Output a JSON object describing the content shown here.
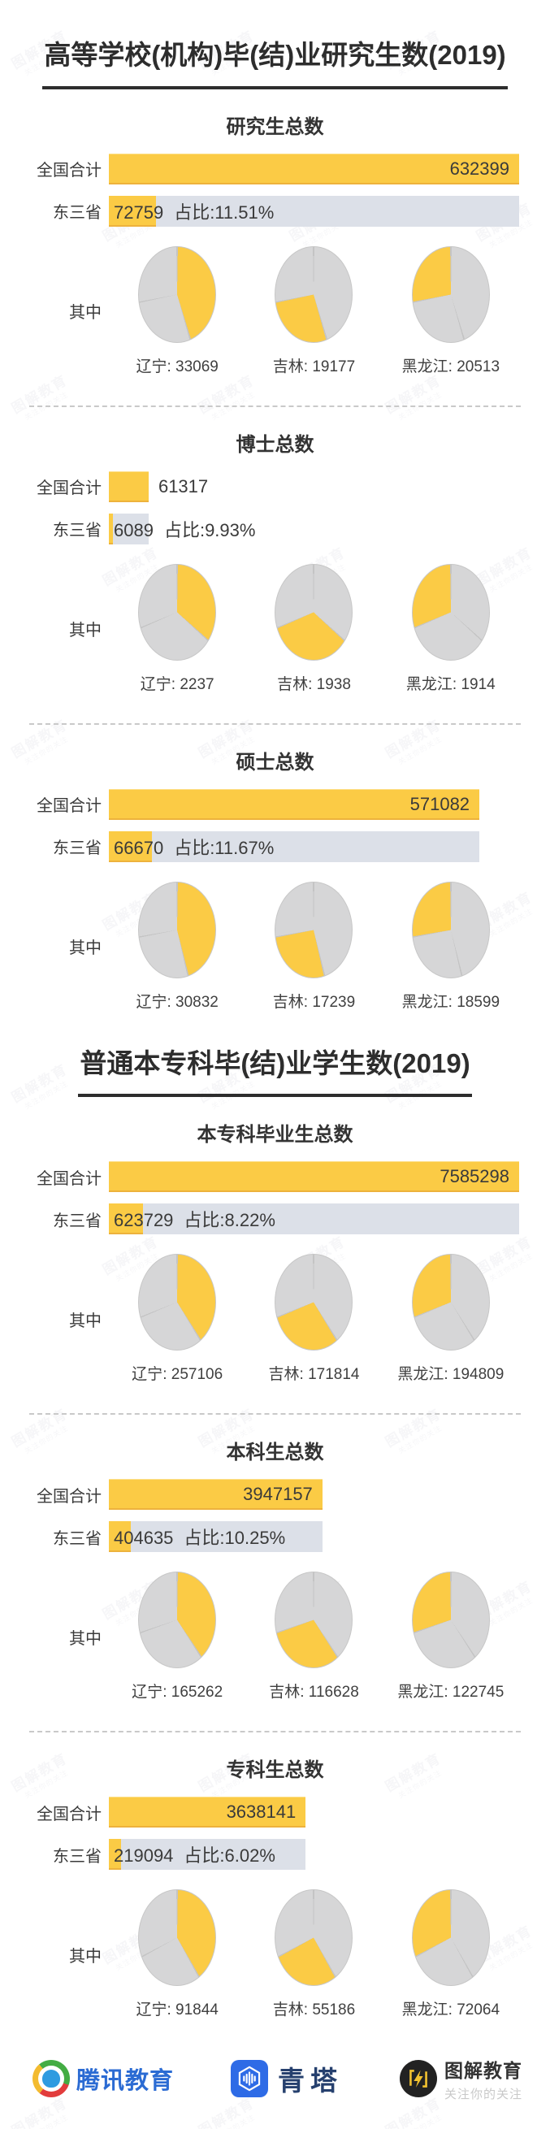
{
  "watermark": {
    "text": "图解教育",
    "sub": "关注你的关注"
  },
  "labels": {
    "national": "全国合计",
    "region": "东三省",
    "among": "其中",
    "colon": ": "
  },
  "colors": {
    "yellow": "#FBCB45",
    "bar_gray": "#DCE0E8",
    "pie_gray": "#D6D6D7",
    "pie_line": "#C4C4C4",
    "title_text": "#2D2D2D",
    "body_text": "#3A3A3A",
    "tencent_blue": "#2B6BD3",
    "qingta_blue": "#2E6BE6",
    "jietu_yellow": "#F2C230"
  },
  "groups": [
    {
      "title": "高等学校(机构)毕(结)业研究生数(2019)"
    },
    {
      "title": "普通本专科毕(结)业学生数(2019)"
    }
  ],
  "chart_data": [
    {
      "type": "bar+pie",
      "group": 0,
      "title": "研究生总数",
      "national": 632399,
      "region": 72759,
      "share": "占比:11.51%",
      "pies": [
        {
          "name": "辽宁",
          "value": 33069
        },
        {
          "name": "吉林",
          "value": 19177
        },
        {
          "name": "黑龙江",
          "value": 20513
        }
      ]
    },
    {
      "type": "bar+pie",
      "group": 0,
      "title": "博士总数",
      "national": 61317,
      "region": 6089,
      "share": "占比:9.93%",
      "pies": [
        {
          "name": "辽宁",
          "value": 2237
        },
        {
          "name": "吉林",
          "value": 1938
        },
        {
          "name": "黑龙江",
          "value": 1914
        }
      ]
    },
    {
      "type": "bar+pie",
      "group": 0,
      "title": "硕士总数",
      "national": 571082,
      "region": 66670,
      "share": "占比:11.67%",
      "pies": [
        {
          "name": "辽宁",
          "value": 30832
        },
        {
          "name": "吉林",
          "value": 17239
        },
        {
          "name": "黑龙江",
          "value": 18599
        }
      ]
    },
    {
      "type": "bar+pie",
      "group": 1,
      "title": "本专科毕业生总数",
      "national": 7585298,
      "region": 623729,
      "share": "占比:8.22%",
      "pies": [
        {
          "name": "辽宁",
          "value": 257106
        },
        {
          "name": "吉林",
          "value": 171814
        },
        {
          "name": "黑龙江",
          "value": 194809
        }
      ]
    },
    {
      "type": "bar+pie",
      "group": 1,
      "title": "本科生总数",
      "national": 3947157,
      "region": 404635,
      "share": "占比:10.25%",
      "pies": [
        {
          "name": "辽宁",
          "value": 165262
        },
        {
          "name": "吉林",
          "value": 116628
        },
        {
          "name": "黑龙江",
          "value": 122745
        }
      ]
    },
    {
      "type": "bar+pie",
      "group": 1,
      "title": "专科生总数",
      "national": 3638141,
      "region": 219094,
      "share": "占比:6.02%",
      "pies": [
        {
          "name": "辽宁",
          "value": 91844
        },
        {
          "name": "吉林",
          "value": 55186
        },
        {
          "name": "黑龙江",
          "value": 72064
        }
      ]
    }
  ],
  "footer": {
    "tencent": "腾讯教育",
    "qingta": "青塔",
    "jietu_title": "图解教育",
    "jietu_sub": "关注你的关注"
  }
}
